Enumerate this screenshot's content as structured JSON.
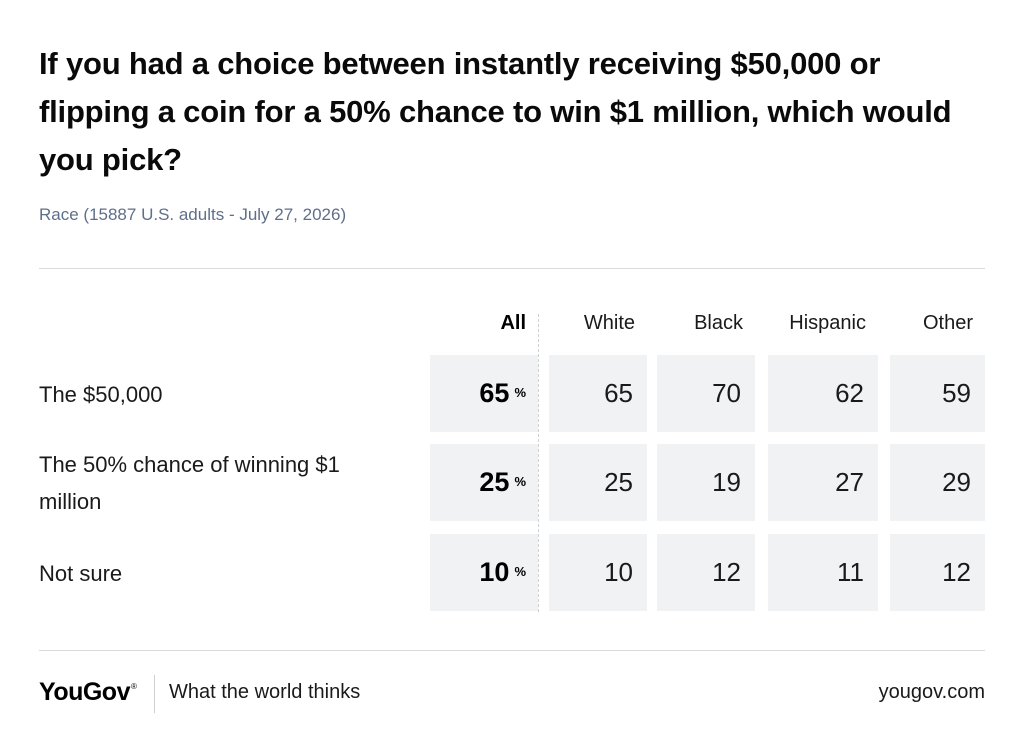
{
  "title": "If you had a choice between instantly receiving $50,000 or flipping a coin for a 50% chance to win $1 million, which would you pick?",
  "subtitle": "Race (15887 U.S. adults - July 27, 2026)",
  "chart_data": {
    "type": "table",
    "columns": [
      "All",
      "White",
      "Black",
      "Hispanic",
      "Other"
    ],
    "rows": [
      {
        "label": "The $50,000",
        "values": [
          65,
          65,
          70,
          62,
          59
        ]
      },
      {
        "label": "The 50% chance of winning $1 million",
        "values": [
          25,
          25,
          19,
          27,
          29
        ]
      },
      {
        "label": "Not sure",
        "values": [
          10,
          10,
          12,
          11,
          12
        ]
      }
    ],
    "unit": "%"
  },
  "footer": {
    "logo": "YouGov",
    "tagline": "What the world thinks",
    "url": "yougov.com"
  },
  "colors": {
    "cell_background": "#f1f2f4",
    "subtitle": "#5f6f8a",
    "rule": "#d9d9d9"
  }
}
